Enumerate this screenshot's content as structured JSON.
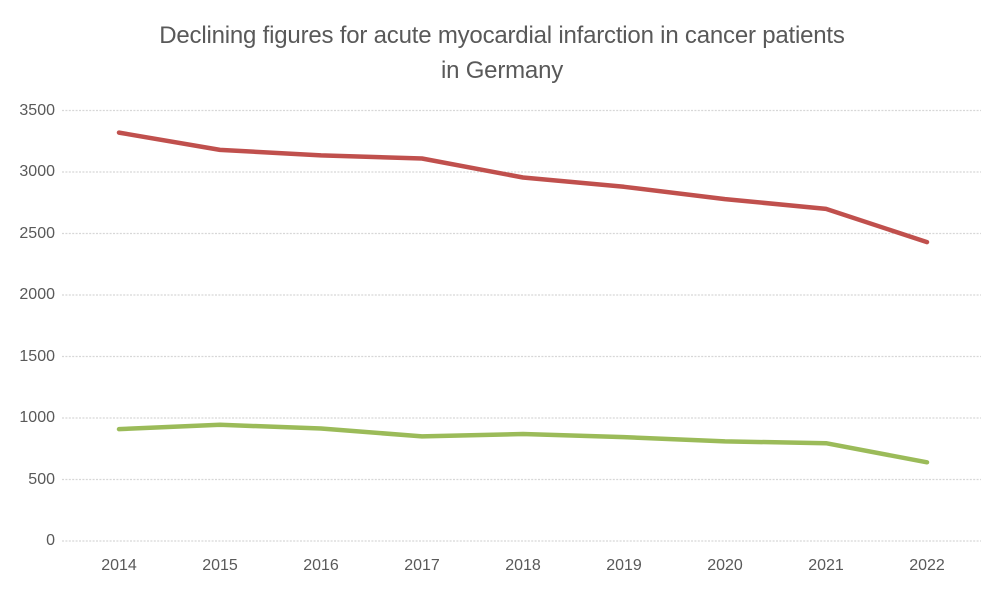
{
  "chart": {
    "title_line1": "Declining figures for acute myocardial infarction in cancer patients",
    "title_line2": "in Germany"
  },
  "chart_data": {
    "type": "line",
    "title": "Declining figures for acute myocardial infarction in cancer patients in Germany",
    "xlabel": "",
    "ylabel": "",
    "categories": [
      "2014",
      "2015",
      "2016",
      "2017",
      "2018",
      "2019",
      "2020",
      "2021",
      "2022"
    ],
    "series": [
      {
        "name": "series-1-red",
        "color": "#C0504D",
        "values": [
          3320,
          3180,
          3135,
          3110,
          2955,
          2880,
          2780,
          2700,
          2430
        ]
      },
      {
        "name": "series-2-green",
        "color": "#9BBB59",
        "values": [
          910,
          945,
          915,
          850,
          870,
          845,
          810,
          795,
          640
        ]
      }
    ],
    "ylim": [
      0,
      3500
    ],
    "yticks": [
      0,
      500,
      1000,
      1500,
      2000,
      2500,
      3000,
      3500
    ],
    "grid": true,
    "legend": false,
    "gridline_color": "#D7D7D7",
    "text_color": "#595959",
    "background_color": "#FFFFFF"
  }
}
